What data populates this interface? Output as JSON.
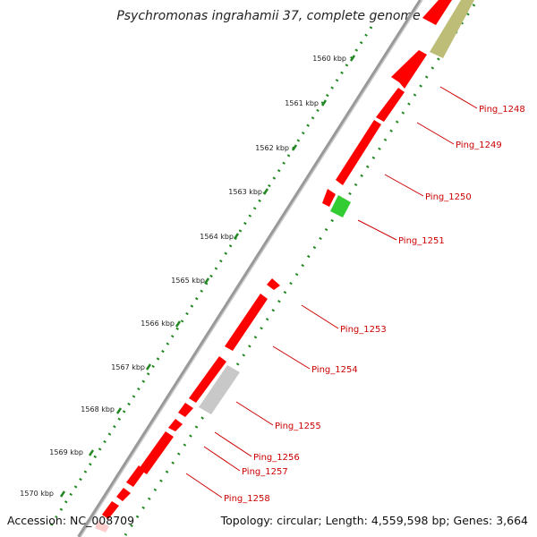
{
  "header": {
    "title": "Psychromonas ingrahamii 37, complete genome"
  },
  "footer": {
    "accession": "Accession: NC_008709",
    "summary": "Topology: circular; Length: 4,559,598 bp; Genes: 3,664"
  },
  "kbp_ticks": [
    "1560 kbp",
    "1561 kbp",
    "1562 kbp",
    "1563 kbp",
    "1564 kbp",
    "1565 kbp",
    "1566 kbp",
    "1567 kbp",
    "1568 kbp",
    "1569 kbp",
    "1570 kbp"
  ],
  "gene_labels": [
    "Ping_1248",
    "Ping_1249",
    "Ping_1250",
    "Ping_1251",
    "Ping_1253",
    "Ping_1254",
    "Ping_1255",
    "Ping_1256",
    "Ping_1257",
    "Ping_1258"
  ],
  "colors": {
    "cds": "#ff0000",
    "trna": "#33cc33",
    "pseudo": "#c8c8c8",
    "other": "#b8b870",
    "backbone": "#888888",
    "ticks": "#228822",
    "labels": "#cc0000"
  }
}
